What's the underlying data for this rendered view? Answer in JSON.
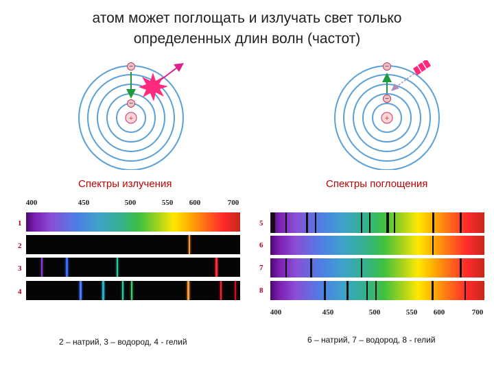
{
  "title": {
    "line1": "атом может поглощать и излучать свет только",
    "line2": "определенных длин волн (частот)"
  },
  "atom_left": {
    "electron_top": "−",
    "electron_inner": "−",
    "nucleus": "+",
    "event": "emission"
  },
  "atom_right": {
    "electron_top": "−",
    "electron_inner": "−",
    "nucleus": "+",
    "event": "absorption"
  },
  "emission": {
    "label": "Спектры излучения",
    "ticks": [
      "400",
      "450",
      "500",
      "550",
      "600",
      "700"
    ],
    "rows": [
      {
        "num": "1",
        "type": "continuous",
        "lines": []
      },
      {
        "num": "2",
        "type": "emission",
        "lines": [
          {
            "nm": 590,
            "color": "#ff9a3a"
          }
        ]
      },
      {
        "num": "3",
        "type": "emission",
        "lines": [
          {
            "nm": 410,
            "color": "#8a3fd6"
          },
          {
            "nm": 434,
            "color": "#3f6cff"
          },
          {
            "nm": 486,
            "color": "#2fc9a0"
          },
          {
            "nm": 656,
            "color": "#ff2b3b"
          }
        ]
      },
      {
        "num": "4",
        "type": "emission",
        "lines": [
          {
            "nm": 447,
            "color": "#4a7bff"
          },
          {
            "nm": 471,
            "color": "#2ab0c8"
          },
          {
            "nm": 492,
            "color": "#2fcf9a"
          },
          {
            "nm": 502,
            "color": "#49d26a"
          },
          {
            "nm": 588,
            "color": "#ff9a3a"
          },
          {
            "nm": 668,
            "color": "#ff2030"
          },
          {
            "nm": 706,
            "color": "#d01020"
          }
        ]
      }
    ],
    "caption": "2 – натрий, 3 – водород, 4 - гелий"
  },
  "absorption": {
    "label": "Спектры поглощения",
    "ticks": [
      "400",
      "450",
      "500",
      "550",
      "600",
      "700"
    ],
    "rows": [
      {
        "num": "5",
        "type": "absorption",
        "lines": [
          {
            "nm": 393
          },
          {
            "nm": 397
          },
          {
            "nm": 410
          },
          {
            "nm": 430
          },
          {
            "nm": 438
          },
          {
            "nm": 486
          },
          {
            "nm": 495
          },
          {
            "nm": 517
          },
          {
            "nm": 518
          },
          {
            "nm": 527
          },
          {
            "nm": 589
          },
          {
            "nm": 590
          },
          {
            "nm": 656
          }
        ]
      },
      {
        "num": "6",
        "type": "absorption",
        "lines": [
          {
            "nm": 589
          }
        ]
      },
      {
        "num": "7",
        "type": "absorption",
        "lines": [
          {
            "nm": 410
          },
          {
            "nm": 434
          },
          {
            "nm": 486
          },
          {
            "nm": 656
          }
        ]
      },
      {
        "num": "8",
        "type": "absorption",
        "lines": [
          {
            "nm": 447
          },
          {
            "nm": 471
          },
          {
            "nm": 492
          },
          {
            "nm": 502
          },
          {
            "nm": 588
          },
          {
            "nm": 668
          }
        ]
      }
    ],
    "caption": "6 – натрий, 7 – водород, 8 - гелий"
  }
}
